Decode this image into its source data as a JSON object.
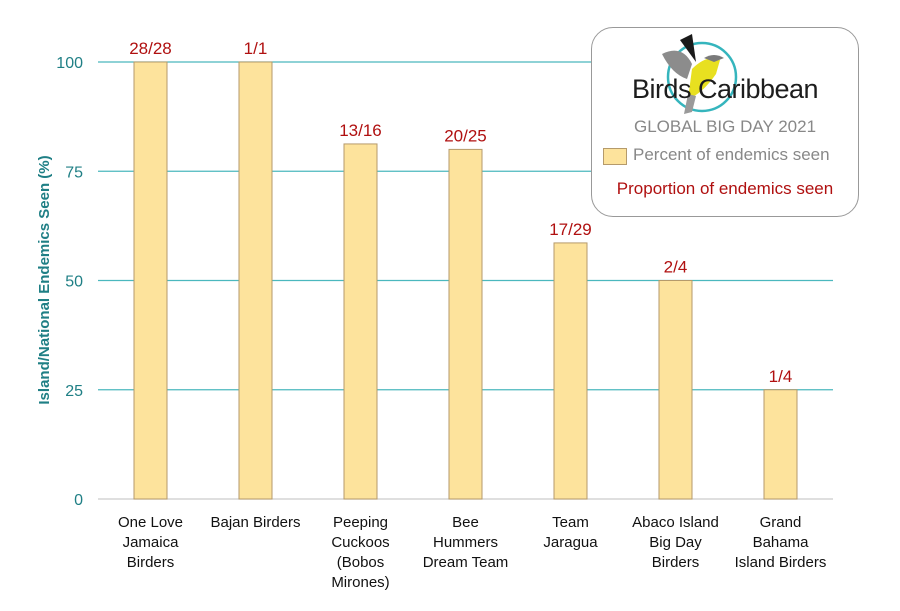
{
  "chart_data": {
    "type": "bar",
    "categories": [
      [
        "One Love",
        "Jamaica",
        "Birders"
      ],
      [
        "Bajan Birders"
      ],
      [
        "Peeping",
        "Cuckoos",
        "(Bobos",
        "Mirones)"
      ],
      [
        "Bee",
        "Hummers",
        "Dream Team"
      ],
      [
        "Team",
        "Jaragua"
      ],
      [
        "Abaco Island",
        "Big Day",
        "Birders"
      ],
      [
        "Grand",
        "Bahama",
        "Island Birders"
      ]
    ],
    "values": [
      100,
      100,
      81.25,
      80,
      58.6,
      50,
      25
    ],
    "data_labels": [
      "28/28",
      "1/1",
      "13/16",
      "20/25",
      "17/29",
      "2/4",
      "1/4"
    ],
    "ylabel": "Island/National Endemics Seen (%)",
    "xlabel": "",
    "ylim": [
      0,
      100
    ],
    "yticks": [
      "0",
      "25",
      "50",
      "75",
      "100"
    ],
    "grid": true,
    "legend_position": "top-right",
    "colors": {
      "bar": "#fde39c",
      "bar_border": "#b59a6b",
      "grid": "#4bb8be",
      "axis_text": "#1f7f85",
      "label": "#b01010"
    }
  },
  "legend": {
    "logo_text": "Birds Caribbean",
    "title": "GLOBAL BIG DAY 2021",
    "series_label": "Percent of endemics seen",
    "label_note": "Proportion of endemics seen"
  }
}
